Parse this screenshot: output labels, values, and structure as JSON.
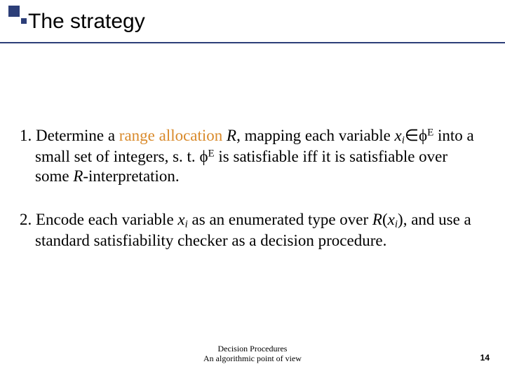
{
  "accent": {
    "color": "#2c3e78",
    "rule_color": "#2c3e78"
  },
  "title": "The strategy",
  "range_allocation_color": "#d98a2b",
  "items": [
    {
      "num": "1.",
      "pre": "Determine a ",
      "hl": "range allocation",
      "post1": " ",
      "R": "R",
      "post2": ", mapping each variable ",
      "xi": "x",
      "xi_sub": "i",
      "in": "∈",
      "phi": "ϕ",
      "E": "E",
      "mid": " into a small set of integers, s. t. ",
      "phi2": "ϕ",
      "E2": "E",
      "tail1": " is satisfiable iff it is satisfiable over some ",
      "R2": "R",
      "tail2": "-interpretation."
    },
    {
      "num": "2.",
      "a": "Encode each variable ",
      "xi": "x",
      "xi_sub": "i",
      "b": " as an enumerated type over ",
      "R": "R",
      "lp": "(",
      "xi2": "x",
      "xi2_sub": "i",
      "rp": ")",
      "c": ", and use a standard satisfiability checker as a decision procedure."
    }
  ],
  "footer": {
    "line1": "Decision Procedures",
    "line2": "An algorithmic point of view"
  },
  "page": "14"
}
